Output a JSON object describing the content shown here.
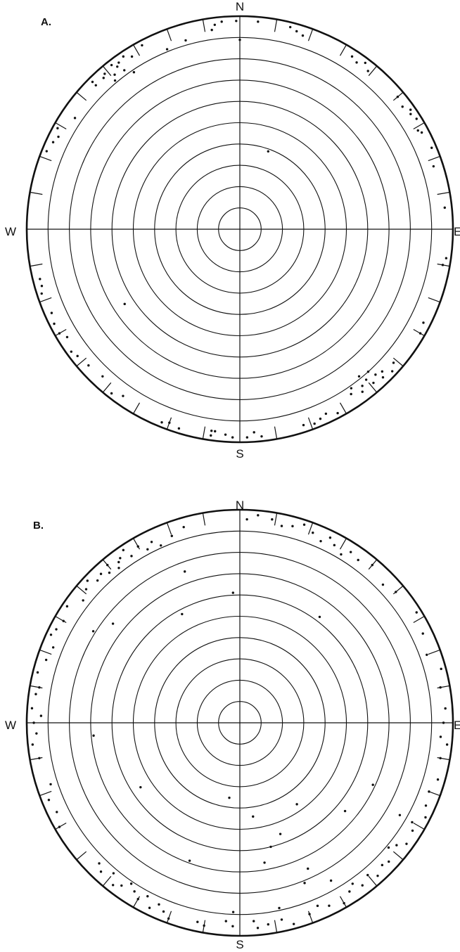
{
  "figure": {
    "panels": [
      {
        "id": "A",
        "label": "A.",
        "directions": {
          "north": "N",
          "south": "S",
          "east": "E",
          "west": "W"
        },
        "ring_count": 9,
        "plotted_points": [
          [
            -16,
            83
          ],
          [
            -22,
            82
          ],
          [
            -34,
            80
          ],
          [
            -36,
            83
          ],
          [
            -40,
            82
          ],
          [
            -7,
            87
          ],
          [
            -8,
            85
          ],
          [
            -28,
            88
          ],
          [
            -34,
            88
          ],
          [
            -42,
            86
          ],
          [
            -37,
            86
          ],
          [
            -39,
            84
          ],
          [
            -32,
            86
          ],
          [
            -36,
            87
          ],
          [
            -45,
            86
          ],
          [
            -38,
            88
          ],
          [
            -45,
            88
          ],
          [
            -41,
            87
          ],
          [
            -63,
            86
          ],
          [
            -65,
            87
          ],
          [
            -61,
            88
          ],
          [
            -106,
            87
          ],
          [
            -108,
            88
          ],
          [
            -104,
            87
          ],
          [
            -117,
            88
          ],
          [
            -114,
            87
          ],
          [
            -120,
            88
          ],
          [
            -122,
            86
          ],
          [
            -128,
            87
          ],
          [
            -126,
            88
          ],
          [
            -132,
            86
          ],
          [
            -137,
            85
          ],
          [
            -142,
            88
          ],
          [
            -145,
            86
          ],
          [
            -160,
            87
          ],
          [
            -163,
            88
          ],
          [
            -158,
            88
          ],
          [
            -173,
            86
          ],
          [
            -176,
            87
          ],
          [
            -178,
            88
          ],
          [
            -172,
            88
          ],
          [
            178,
            88
          ],
          [
            176,
            86
          ],
          [
            174,
            88
          ],
          [
            159,
            88
          ],
          [
            162,
            87
          ],
          [
            155,
            86
          ],
          [
            157,
            87
          ],
          [
            152,
            88
          ],
          [
            137,
            84
          ],
          [
            138,
            81
          ],
          [
            140,
            83
          ],
          [
            141,
            80
          ],
          [
            145,
            82
          ],
          [
            146,
            84
          ],
          [
            143,
            86
          ],
          [
            136,
            87
          ],
          [
            139,
            86
          ],
          [
            142,
            84
          ],
          [
            135,
            85
          ],
          [
            133,
            88
          ],
          [
            131,
            86
          ],
          [
            117,
            87
          ],
          [
            120,
            88
          ],
          [
            98,
            88
          ],
          [
            100,
            87
          ],
          [
            84,
            87
          ],
          [
            72,
            86
          ],
          [
            67,
            88
          ],
          [
            62,
            87
          ],
          [
            61,
            86
          ],
          [
            58,
            88
          ],
          [
            56,
            87
          ],
          [
            53,
            86
          ],
          [
            55,
            88
          ],
          [
            50,
            87
          ],
          [
            39,
            86
          ],
          [
            37,
            88
          ],
          [
            35,
            86
          ],
          [
            33,
            87
          ],
          [
            18,
            86
          ],
          [
            16,
            87
          ],
          [
            14,
            88
          ],
          [
            -1,
            88
          ],
          [
            0,
            80
          ],
          [
            -5,
            88
          ],
          [
            5,
            88
          ],
          [
            -56,
            84
          ],
          [
            -68,
            88
          ],
          [
            20,
            35
          ],
          [
            -123,
            58
          ],
          [
            -172,
            86
          ]
        ]
      },
      {
        "id": "B",
        "label": "B.",
        "directions": {
          "north": "N",
          "south": "S",
          "east": "E",
          "west": "W"
        },
        "ring_count": 9,
        "plotted_points": [
          [
            -16,
            86
          ],
          [
            -20,
            84
          ],
          [
            -24,
            82
          ],
          [
            -26,
            85
          ],
          [
            -28,
            83
          ],
          [
            -30,
            86
          ],
          [
            -33,
            84
          ],
          [
            -34,
            88
          ],
          [
            -36,
            86
          ],
          [
            -37,
            85
          ],
          [
            -38,
            83
          ],
          [
            -40,
            87
          ],
          [
            -41,
            84
          ],
          [
            -43,
            86
          ],
          [
            -45,
            85
          ],
          [
            -47,
            88
          ],
          [
            -49,
            86
          ],
          [
            -52,
            84
          ],
          [
            -56,
            88
          ],
          [
            -60,
            86
          ],
          [
            -63,
            87
          ],
          [
            -65,
            88
          ],
          [
            -68,
            85
          ],
          [
            -72,
            86
          ],
          [
            -76,
            88
          ],
          [
            -80,
            86
          ],
          [
            -82,
            87
          ],
          [
            -86,
            88
          ],
          [
            -88,
            84
          ],
          [
            -90,
            87
          ],
          [
            -93,
            86
          ],
          [
            -96,
            88
          ],
          [
            -100,
            86
          ],
          [
            -108,
            84
          ],
          [
            -112,
            87
          ],
          [
            -116,
            86
          ],
          [
            -120,
            88
          ],
          [
            -135,
            84
          ],
          [
            -137,
            86
          ],
          [
            -140,
            83
          ],
          [
            -142,
            87
          ],
          [
            -144,
            85
          ],
          [
            -146,
            82
          ],
          [
            -148,
            84
          ],
          [
            -150,
            86
          ],
          [
            -152,
            83
          ],
          [
            -154,
            87
          ],
          [
            -156,
            84
          ],
          [
            -158,
            86
          ],
          [
            -160,
            88
          ],
          [
            -168,
            86
          ],
          [
            -170,
            87
          ],
          [
            -176,
            84
          ],
          [
            -178,
            86
          ],
          [
            176,
            84
          ],
          [
            175,
            87
          ],
          [
            172,
            86
          ],
          [
            168,
            85
          ],
          [
            165,
            88
          ],
          [
            160,
            86
          ],
          [
            157,
            84
          ],
          [
            154,
            86
          ],
          [
            150,
            88
          ],
          [
            147,
            85
          ],
          [
            145,
            83
          ],
          [
            143,
            86
          ],
          [
            140,
            84
          ],
          [
            138,
            87
          ],
          [
            135,
            85
          ],
          [
            133,
            86
          ],
          [
            130,
            82
          ],
          [
            128,
            84
          ],
          [
            126,
            87
          ],
          [
            122,
            86
          ],
          [
            120,
            84
          ],
          [
            117,
            88
          ],
          [
            114,
            86
          ],
          [
            110,
            85
          ],
          [
            106,
            87
          ],
          [
            100,
            86
          ],
          [
            96,
            88
          ],
          [
            94,
            85
          ],
          [
            90,
            86
          ],
          [
            86,
            87
          ],
          [
            80,
            86
          ],
          [
            75,
            88
          ],
          [
            70,
            84
          ],
          [
            64,
            86
          ],
          [
            58,
            88
          ],
          [
            50,
            86
          ],
          [
            46,
            84
          ],
          [
            40,
            87
          ],
          [
            36,
            85
          ],
          [
            33,
            86
          ],
          [
            31,
            83
          ],
          [
            28,
            85
          ],
          [
            26,
            87
          ],
          [
            24,
            84
          ],
          [
            21,
            86
          ],
          [
            18,
            88
          ],
          [
            15,
            86
          ],
          [
            12,
            85
          ],
          [
            9,
            87
          ],
          [
            5,
            88
          ],
          [
            2,
            86
          ],
          [
            -28,
            52
          ],
          [
            -20,
            68
          ],
          [
            -3,
            55
          ],
          [
            -58,
            73
          ],
          [
            -123,
            50
          ],
          [
            -95,
            62
          ],
          [
            -52,
            68
          ],
          [
            115,
            62
          ],
          [
            145,
            42
          ],
          [
            155,
            68
          ],
          [
            160,
            50
          ],
          [
            172,
            40
          ],
          [
            130,
            58
          ],
          [
            158,
            73
          ],
          [
            170,
            60
          ],
          [
            166,
            54
          ],
          [
            -160,
            62
          ],
          [
            -172,
            32
          ],
          [
            -178,
            80
          ],
          [
            150,
            77
          ],
          [
            37,
            56
          ],
          [
            120,
            78
          ],
          [
            168,
            80
          ]
        ]
      }
    ]
  }
}
